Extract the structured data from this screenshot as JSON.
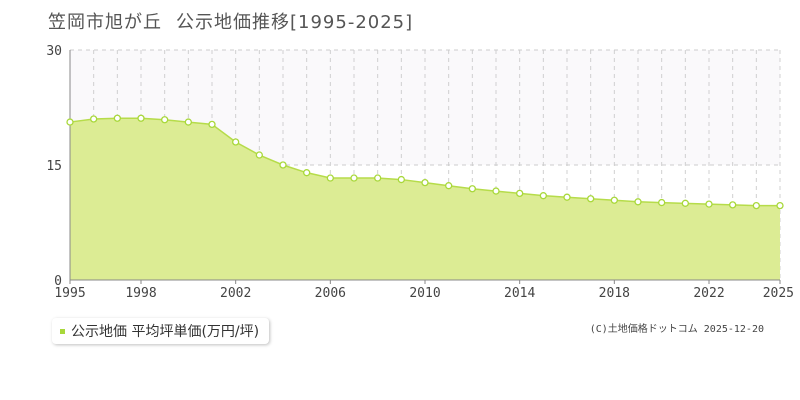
{
  "header": {
    "title": "笠岡市旭が丘",
    "subtitle": "公示地価推移[1995-2025]"
  },
  "legend": {
    "label": "公示地価 平均坪単価(万円/坪)"
  },
  "credit": "(C)土地価格ドットコム 2025-12-20",
  "colors": {
    "area_fill": "#dcec94",
    "line": "#b6dc4a",
    "marker_fill": "#ffffff",
    "marker_stroke": "#a8d83a",
    "legend_swatch": "#a8d83a"
  },
  "chart_data": {
    "type": "area",
    "x": [
      1995,
      1996,
      1997,
      1998,
      1999,
      2000,
      2001,
      2002,
      2003,
      2004,
      2005,
      2006,
      2007,
      2008,
      2009,
      2010,
      2011,
      2012,
      2013,
      2014,
      2015,
      2016,
      2017,
      2018,
      2019,
      2020,
      2021,
      2022,
      2023,
      2024,
      2025
    ],
    "series": [
      {
        "values": [
          20.6,
          21.0,
          21.1,
          21.1,
          20.9,
          20.6,
          20.3,
          18.0,
          16.3,
          15.0,
          14.0,
          13.3,
          13.3,
          13.3,
          13.1,
          12.7,
          12.3,
          11.9,
          11.6,
          11.3,
          11.0,
          10.8,
          10.6,
          10.4,
          10.2,
          10.1,
          10.0,
          9.9,
          9.8,
          9.7,
          9.7
        ]
      }
    ],
    "xticks": [
      "1995",
      "1998",
      "2002",
      "2006",
      "2010",
      "2014",
      "2018",
      "2022",
      "2025"
    ],
    "yticks": [
      "0",
      "15",
      "30"
    ],
    "ylim": [
      0,
      30
    ],
    "xlim": [
      1995,
      2025
    ],
    "grid": true
  }
}
